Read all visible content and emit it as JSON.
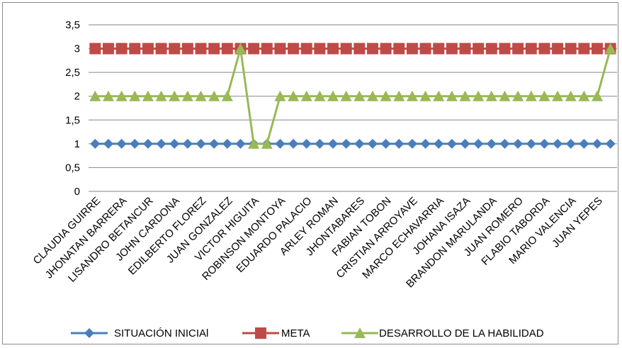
{
  "chart_data": {
    "type": "line",
    "title": "",
    "xlabel": "",
    "ylabel": "",
    "ylim": [
      0,
      3.5
    ],
    "yticks": [
      "0",
      "0,5",
      "1",
      "1,5",
      "2",
      "2,5",
      "3",
      "3,5"
    ],
    "grid": true,
    "legend_position": "bottom",
    "x_label_every": 2,
    "categories": [
      "CLAUDIA GUIRRE",
      "",
      "JHONATAN BARRERA",
      "",
      "LISANDRO BETANCUR",
      "",
      "JOHN  CARDONA",
      "",
      "EDILBERTO FLOREZ",
      "",
      "JUAN  GONZALEZ",
      "",
      "VICTOR  HIGUITA",
      "",
      "ROBINSON MONTOYA",
      "",
      "EDUARDO PALACIO",
      "",
      "ARLEY ROMAN",
      "",
      "JHONTABARES",
      "",
      "FABIAN TOBON",
      "",
      "CRISTIAN ARROYAVE",
      "",
      "MARCO ECHAVARRIA",
      "",
      "JOHANA  ISAZA",
      "",
      "BRANDON MARULANDA",
      "",
      "JUAN ROMERO",
      "",
      "FLABIO  TABORDA",
      "",
      "MARIO VALENCIA",
      "",
      "JUAN  YEPES",
      ""
    ],
    "series": [
      {
        "name": "SITUACIÓN INICIAl",
        "color": "#4a7ebb",
        "marker": "diamond",
        "values": [
          1,
          1,
          1,
          1,
          1,
          1,
          1,
          1,
          1,
          1,
          1,
          1,
          1,
          1,
          1,
          1,
          1,
          1,
          1,
          1,
          1,
          1,
          1,
          1,
          1,
          1,
          1,
          1,
          1,
          1,
          1,
          1,
          1,
          1,
          1,
          1,
          1,
          1,
          1,
          1
        ]
      },
      {
        "name": "META",
        "color": "#be4b48",
        "marker": "square",
        "values": [
          3,
          3,
          3,
          3,
          3,
          3,
          3,
          3,
          3,
          3,
          3,
          3,
          3,
          3,
          3,
          3,
          3,
          3,
          3,
          3,
          3,
          3,
          3,
          3,
          3,
          3,
          3,
          3,
          3,
          3,
          3,
          3,
          3,
          3,
          3,
          3,
          3,
          3,
          3,
          3
        ]
      },
      {
        "name": "DESARROLLO DE LA HABILIDAD",
        "color": "#98b954",
        "marker": "triangle",
        "values": [
          2,
          2,
          2,
          2,
          2,
          2,
          2,
          2,
          2,
          2,
          2,
          3,
          1,
          1,
          2,
          2,
          2,
          2,
          2,
          2,
          2,
          2,
          2,
          2,
          2,
          2,
          2,
          2,
          2,
          2,
          2,
          2,
          2,
          2,
          2,
          2,
          2,
          2,
          2,
          3
        ]
      }
    ]
  }
}
